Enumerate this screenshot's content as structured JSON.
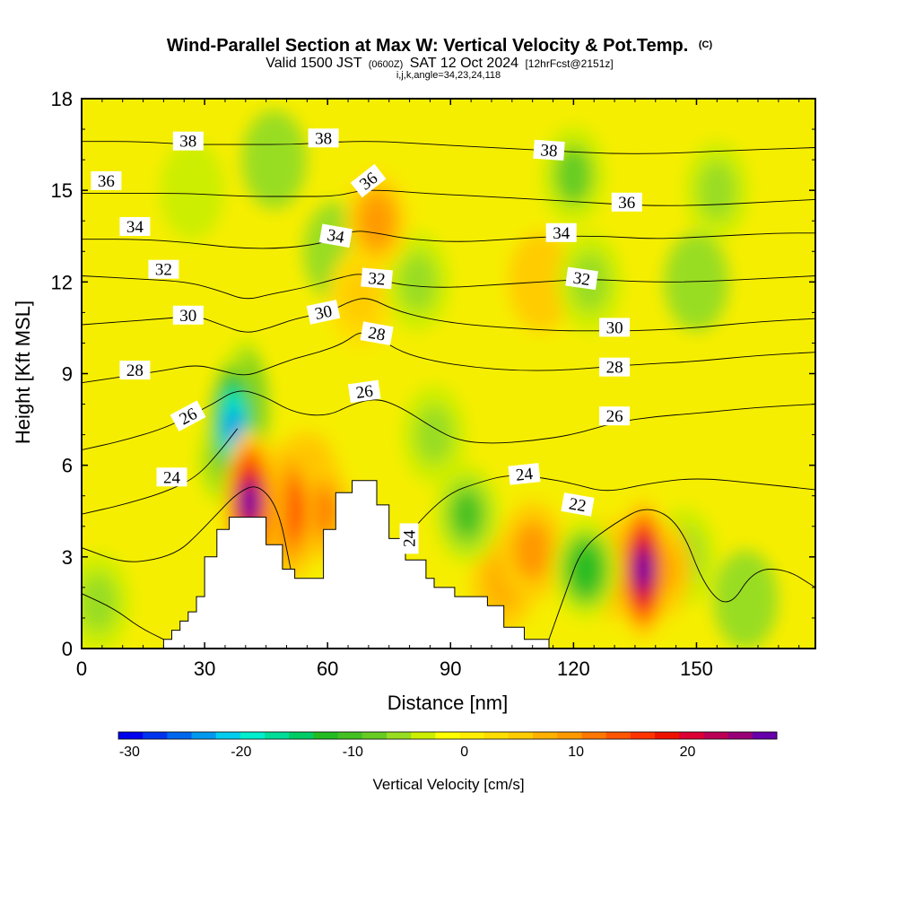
{
  "header": {
    "title": "Wind-Parallel Section at Max W: Vertical Velocity & Pot.Temp.",
    "copyright": "(C)",
    "valid_prefix": "Valid 1500 JST",
    "valid_z": "(0600Z)",
    "valid_date": "SAT 12 Oct 2024",
    "forecast": "[12hrFcst@2151z]",
    "indices": "i,j,k,angle=34,23,24,118"
  },
  "chart_data": {
    "type": "heatmap",
    "xlabel": "Distance [nm]",
    "ylabel": "Height [Kft MSL]",
    "xlim": [
      0,
      179
    ],
    "ylim": [
      0,
      18
    ],
    "x_ticks": [
      "0",
      "30",
      "60",
      "90",
      "120",
      "150"
    ],
    "y_ticks": [
      "0",
      "3",
      "6",
      "9",
      "12",
      "15",
      "18"
    ],
    "grid": false,
    "colorbar": {
      "label": "Vertical Velocity [cm/s]",
      "tick_labels": [
        "-30",
        "-20",
        "-10",
        "0",
        "10",
        "20"
      ],
      "tick_values": [
        -30,
        -20,
        -10,
        0,
        10,
        20
      ],
      "range": [
        -31,
        28
      ],
      "placement": "bottom",
      "colors": [
        "#0000ee",
        "#0033ee",
        "#0066ee",
        "#0099ee",
        "#00ccee",
        "#00eecc",
        "#00dd99",
        "#00cc66",
        "#22bb22",
        "#44c022",
        "#66cc22",
        "#99dd22",
        "#ccee00",
        "#ffff00",
        "#ffee00",
        "#ffdd00",
        "#ffcc00",
        "#ffb000",
        "#ff9900",
        "#ff7700",
        "#ff5500",
        "#ff3300",
        "#ee1100",
        "#dd0033",
        "#bb0055",
        "#990077",
        "#6600aa"
      ]
    },
    "terrain": [
      [
        20,
        0
      ],
      [
        20,
        0.3
      ],
      [
        22,
        0.3
      ],
      [
        22,
        0.6
      ],
      [
        24,
        0.6
      ],
      [
        24,
        0.9
      ],
      [
        26,
        0.9
      ],
      [
        26,
        1.2
      ],
      [
        28,
        1.2
      ],
      [
        28,
        1.7
      ],
      [
        30,
        1.7
      ],
      [
        30,
        3.0
      ],
      [
        33,
        3.0
      ],
      [
        33,
        3.9
      ],
      [
        36,
        3.9
      ],
      [
        36,
        4.3
      ],
      [
        45,
        4.3
      ],
      [
        45,
        3.4
      ],
      [
        49,
        3.4
      ],
      [
        49,
        2.6
      ],
      [
        52,
        2.6
      ],
      [
        52,
        2.3
      ],
      [
        59,
        2.3
      ],
      [
        59,
        3.9
      ],
      [
        62,
        3.9
      ],
      [
        62,
        5.1
      ],
      [
        66,
        5.1
      ],
      [
        66,
        5.5
      ],
      [
        72,
        5.5
      ],
      [
        72,
        4.7
      ],
      [
        75,
        4.7
      ],
      [
        75,
        3.6
      ],
      [
        79,
        3.6
      ],
      [
        79,
        2.9
      ],
      [
        84,
        2.9
      ],
      [
        84,
        2.3
      ],
      [
        86,
        2.3
      ],
      [
        86,
        2.0
      ],
      [
        91,
        2.0
      ],
      [
        91,
        1.7
      ],
      [
        99,
        1.7
      ],
      [
        99,
        1.4
      ],
      [
        103,
        1.4
      ],
      [
        103,
        0.7
      ],
      [
        108,
        0.7
      ],
      [
        108,
        0.3
      ],
      [
        114,
        0.3
      ],
      [
        114,
        0
      ]
    ],
    "vertical_velocity_features": [
      {
        "x": 37,
        "y": 7.3,
        "w_cm_s": -24
      },
      {
        "x": 40,
        "y": 7.8,
        "w_cm_s": -18
      },
      {
        "x": 36,
        "y": 6.2,
        "w_cm_s": -12
      },
      {
        "x": 41,
        "y": 4.8,
        "w_cm_s": 26
      },
      {
        "x": 44,
        "y": 4.5,
        "w_cm_s": 20
      },
      {
        "x": 51,
        "y": 4.5,
        "w_cm_s": 16
      },
      {
        "x": 58,
        "y": 4.5,
        "w_cm_s": 12
      },
      {
        "x": 55,
        "y": 5.5,
        "w_cm_s": 8
      },
      {
        "x": 72,
        "y": 14.0,
        "w_cm_s": 10
      },
      {
        "x": 68,
        "y": 11.5,
        "w_cm_s": 6
      },
      {
        "x": 137,
        "y": 2.6,
        "w_cm_s": 27
      },
      {
        "x": 130,
        "y": 2.6,
        "w_cm_s": 9
      },
      {
        "x": 141,
        "y": 2.6,
        "w_cm_s": 9
      },
      {
        "x": 123,
        "y": 2.6,
        "w_cm_s": -12
      },
      {
        "x": 147,
        "y": 3.0,
        "w_cm_s": -6
      },
      {
        "x": 94,
        "y": 4.4,
        "w_cm_s": -10
      },
      {
        "x": 86,
        "y": 7.0,
        "w_cm_s": -6
      },
      {
        "x": 120,
        "y": 15.5,
        "w_cm_s": -8
      },
      {
        "x": 124,
        "y": 12.0,
        "w_cm_s": -6
      },
      {
        "x": 155,
        "y": 15.0,
        "w_cm_s": -6
      },
      {
        "x": 150,
        "y": 12.0,
        "w_cm_s": -5
      },
      {
        "x": 82,
        "y": 12.0,
        "w_cm_s": -6
      },
      {
        "x": 62,
        "y": 13.0,
        "w_cm_s": -5
      },
      {
        "x": 47,
        "y": 16.0,
        "w_cm_s": -5
      },
      {
        "x": 27,
        "y": 15.0,
        "w_cm_s": -4
      },
      {
        "x": 110,
        "y": 3.2,
        "w_cm_s": 9
      },
      {
        "x": 103,
        "y": 2.2,
        "w_cm_s": 8
      },
      {
        "x": 4,
        "y": 1.5,
        "w_cm_s": -6
      },
      {
        "x": 162,
        "y": 1.6,
        "w_cm_s": -5
      },
      {
        "x": 112,
        "y": 12.0,
        "w_cm_s": 4
      }
    ],
    "potential_temperature_contours": [
      {
        "level": "22",
        "points": [
          [
            0,
            1.8
          ],
          [
            8,
            1.3
          ],
          [
            14,
            0.7
          ],
          [
            20,
            0.3
          ]
        ]
      },
      {
        "level": "22",
        "points": [
          [
            114,
            0.3
          ],
          [
            118,
            1.8
          ],
          [
            122,
            3.3
          ],
          [
            130,
            4.1
          ],
          [
            138,
            4.7
          ],
          [
            146,
            4.1
          ],
          [
            152,
            2.0
          ],
          [
            158,
            1.3
          ],
          [
            164,
            2.6
          ],
          [
            172,
            2.6
          ],
          [
            179,
            2.0
          ]
        ]
      },
      {
        "level": "24",
        "points": [
          [
            0,
            3.3
          ],
          [
            10,
            2.8
          ],
          [
            18,
            2.9
          ],
          [
            24,
            3.2
          ],
          [
            28,
            3.7
          ],
          [
            33,
            4.4
          ],
          [
            38,
            5.1
          ],
          [
            43,
            5.4
          ],
          [
            48,
            4.6
          ],
          [
            51,
            2.6
          ]
        ]
      },
      {
        "level": "24",
        "points": [
          [
            79,
            3.6
          ],
          [
            84,
            4.4
          ],
          [
            90,
            5.1
          ],
          [
            96,
            5.4
          ],
          [
            104,
            5.7
          ],
          [
            112,
            5.6
          ],
          [
            120,
            5.4
          ],
          [
            128,
            5.1
          ],
          [
            138,
            5.4
          ],
          [
            150,
            5.6
          ],
          [
            165,
            5.4
          ],
          [
            179,
            5.2
          ]
        ]
      },
      {
        "level": "24",
        "points": [
          [
            0,
            4.4
          ],
          [
            10,
            4.7
          ],
          [
            20,
            5.1
          ],
          [
            28,
            5.6
          ],
          [
            34,
            6.5
          ],
          [
            38,
            7.2
          ]
        ]
      },
      {
        "level": "26",
        "points": [
          [
            0,
            6.5
          ],
          [
            10,
            6.8
          ],
          [
            20,
            7.2
          ],
          [
            26,
            7.6
          ],
          [
            32,
            8.0
          ],
          [
            38,
            8.5
          ],
          [
            44,
            8.3
          ],
          [
            52,
            7.7
          ],
          [
            60,
            7.6
          ],
          [
            66,
            8.0
          ],
          [
            72,
            8.2
          ],
          [
            78,
            7.9
          ],
          [
            86,
            7.2
          ],
          [
            92,
            6.8
          ],
          [
            100,
            6.7
          ],
          [
            110,
            6.8
          ],
          [
            120,
            7.0
          ],
          [
            130,
            7.4
          ],
          [
            140,
            7.6
          ],
          [
            150,
            7.7
          ],
          [
            165,
            7.9
          ],
          [
            179,
            8.0
          ]
        ]
      },
      {
        "level": "28",
        "points": [
          [
            0,
            8.7
          ],
          [
            10,
            8.9
          ],
          [
            20,
            9.1
          ],
          [
            28,
            9.3
          ],
          [
            34,
            9.1
          ],
          [
            40,
            8.9
          ],
          [
            46,
            9.2
          ],
          [
            52,
            9.5
          ],
          [
            58,
            9.7
          ],
          [
            64,
            10.0
          ],
          [
            68,
            10.4
          ],
          [
            72,
            10.2
          ],
          [
            78,
            9.7
          ],
          [
            86,
            9.4
          ],
          [
            96,
            9.2
          ],
          [
            106,
            9.1
          ],
          [
            116,
            9.1
          ],
          [
            126,
            9.2
          ],
          [
            136,
            9.3
          ],
          [
            150,
            9.4
          ],
          [
            165,
            9.6
          ],
          [
            179,
            9.7
          ]
        ]
      },
      {
        "level": "30",
        "points": [
          [
            0,
            10.6
          ],
          [
            10,
            10.7
          ],
          [
            20,
            10.8
          ],
          [
            28,
            10.9
          ],
          [
            34,
            10.6
          ],
          [
            40,
            10.3
          ],
          [
            46,
            10.5
          ],
          [
            52,
            10.8
          ],
          [
            60,
            11.0
          ],
          [
            66,
            11.4
          ],
          [
            70,
            11.5
          ],
          [
            76,
            11.1
          ],
          [
            84,
            10.8
          ],
          [
            94,
            10.6
          ],
          [
            104,
            10.5
          ],
          [
            116,
            10.4
          ],
          [
            126,
            10.4
          ],
          [
            136,
            10.4
          ],
          [
            150,
            10.5
          ],
          [
            165,
            10.7
          ],
          [
            179,
            10.8
          ]
        ]
      },
      {
        "level": "32",
        "points": [
          [
            0,
            12.2
          ],
          [
            14,
            12.1
          ],
          [
            26,
            12.0
          ],
          [
            34,
            11.7
          ],
          [
            40,
            11.4
          ],
          [
            46,
            11.6
          ],
          [
            54,
            11.8
          ],
          [
            62,
            12.1
          ],
          [
            68,
            12.3
          ],
          [
            72,
            12.1
          ],
          [
            78,
            11.9
          ],
          [
            88,
            11.8
          ],
          [
            100,
            11.9
          ],
          [
            112,
            12.0
          ],
          [
            124,
            12.1
          ],
          [
            136,
            12.0
          ],
          [
            150,
            12.0
          ],
          [
            165,
            12.1
          ],
          [
            179,
            12.2
          ]
        ]
      },
      {
        "level": "34",
        "points": [
          [
            0,
            13.4
          ],
          [
            14,
            13.4
          ],
          [
            26,
            13.3
          ],
          [
            38,
            13.1
          ],
          [
            50,
            13.1
          ],
          [
            60,
            13.3
          ],
          [
            66,
            13.7
          ],
          [
            72,
            13.6
          ],
          [
            80,
            13.4
          ],
          [
            92,
            13.3
          ],
          [
            104,
            13.4
          ],
          [
            116,
            13.5
          ],
          [
            128,
            13.5
          ],
          [
            140,
            13.4
          ],
          [
            155,
            13.5
          ],
          [
            170,
            13.6
          ],
          [
            179,
            13.6
          ]
        ]
      },
      {
        "level": "36",
        "points": [
          [
            0,
            14.9
          ],
          [
            14,
            14.9
          ],
          [
            26,
            14.9
          ],
          [
            40,
            14.8
          ],
          [
            52,
            14.8
          ],
          [
            62,
            14.8
          ],
          [
            68,
            15.0
          ],
          [
            74,
            15.0
          ],
          [
            84,
            14.9
          ],
          [
            98,
            14.8
          ],
          [
            112,
            14.7
          ],
          [
            124,
            14.6
          ],
          [
            136,
            14.5
          ],
          [
            150,
            14.5
          ],
          [
            165,
            14.6
          ],
          [
            179,
            14.7
          ]
        ]
      },
      {
        "level": "38",
        "points": [
          [
            0,
            16.6
          ],
          [
            14,
            16.6
          ],
          [
            26,
            16.5
          ],
          [
            40,
            16.5
          ],
          [
            52,
            16.5
          ],
          [
            64,
            16.6
          ],
          [
            74,
            16.6
          ],
          [
            86,
            16.5
          ],
          [
            100,
            16.4
          ],
          [
            114,
            16.3
          ],
          [
            128,
            16.2
          ],
          [
            142,
            16.2
          ],
          [
            158,
            16.3
          ],
          [
            179,
            16.4
          ]
        ]
      }
    ],
    "contour_labels": [
      {
        "text": "38",
        "x": 26,
        "y": 16.6,
        "angle": 0
      },
      {
        "text": "38",
        "x": 59,
        "y": 16.7,
        "angle": 0
      },
      {
        "text": "38",
        "x": 114,
        "y": 16.3,
        "angle": 4
      },
      {
        "text": "36",
        "x": 6,
        "y": 15.3,
        "angle": 0
      },
      {
        "text": "36",
        "x": 70,
        "y": 15.3,
        "angle": -38
      },
      {
        "text": "36",
        "x": 133,
        "y": 14.6,
        "angle": 0
      },
      {
        "text": "34",
        "x": 13,
        "y": 13.8,
        "angle": 0
      },
      {
        "text": "34",
        "x": 62,
        "y": 13.5,
        "angle": 10
      },
      {
        "text": "34",
        "x": 117,
        "y": 13.6,
        "angle": 0
      },
      {
        "text": "32",
        "x": 20,
        "y": 12.4,
        "angle": 0
      },
      {
        "text": "32",
        "x": 72,
        "y": 12.1,
        "angle": 5
      },
      {
        "text": "32",
        "x": 122,
        "y": 12.1,
        "angle": 8
      },
      {
        "text": "30",
        "x": 26,
        "y": 10.9,
        "angle": 0
      },
      {
        "text": "30",
        "x": 59,
        "y": 11.0,
        "angle": -12
      },
      {
        "text": "30",
        "x": 130,
        "y": 10.5,
        "angle": 0
      },
      {
        "text": "28",
        "x": 13,
        "y": 9.1,
        "angle": 0
      },
      {
        "text": "28",
        "x": 72,
        "y": 10.3,
        "angle": 10
      },
      {
        "text": "28",
        "x": 130,
        "y": 9.2,
        "angle": 0
      },
      {
        "text": "26",
        "x": 26,
        "y": 7.6,
        "angle": -28
      },
      {
        "text": "26",
        "x": 69,
        "y": 8.4,
        "angle": -8
      },
      {
        "text": "26",
        "x": 130,
        "y": 7.6,
        "angle": 0
      },
      {
        "text": "24",
        "x": 22,
        "y": 5.6,
        "angle": 0
      },
      {
        "text": "24",
        "x": 108,
        "y": 5.7,
        "angle": -6
      },
      {
        "text": "24",
        "x": 80,
        "y": 3.6,
        "angle": -90
      },
      {
        "text": "22",
        "x": 121,
        "y": 4.7,
        "angle": 10
      }
    ]
  }
}
